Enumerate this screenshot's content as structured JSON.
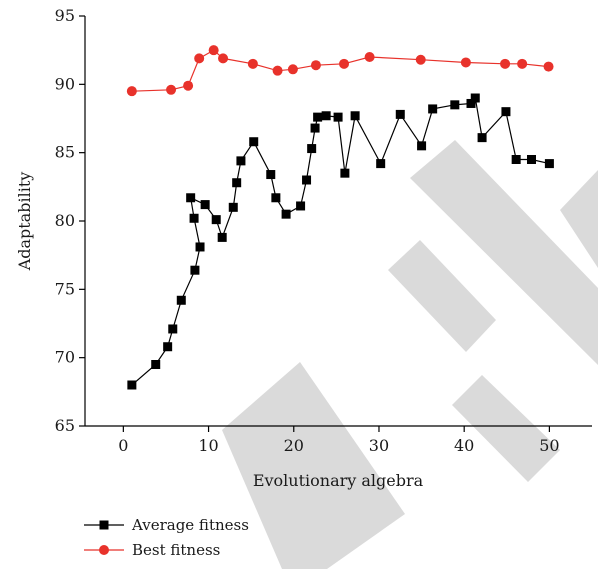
{
  "chart_data": {
    "type": "line",
    "xlabel": "Evolutionary algebra",
    "ylabel": "Adaptability",
    "xlim": [
      -4.5,
      55
    ],
    "ylim": [
      65,
      95
    ],
    "x_ticks": [
      0,
      10,
      20,
      30,
      40,
      50
    ],
    "y_ticks": [
      65,
      70,
      75,
      80,
      85,
      90,
      95
    ],
    "grid": false,
    "legend_position": "bottom-left",
    "series": [
      {
        "name": "Average fitness",
        "color": "#000000",
        "marker": "square",
        "points": [
          [
            1,
            68.0
          ],
          [
            3.8,
            69.5
          ],
          [
            5.2,
            70.8
          ],
          [
            5.8,
            72.1
          ],
          [
            6.8,
            74.2
          ],
          [
            8.4,
            76.4
          ],
          [
            9,
            78.1
          ],
          [
            8.3,
            80.2
          ],
          [
            7.9,
            81.7
          ],
          [
            9.6,
            81.2
          ],
          [
            10.9,
            80.1
          ],
          [
            11.6,
            78.8
          ],
          [
            12.9,
            81.0
          ],
          [
            13.3,
            82.8
          ],
          [
            13.8,
            84.4
          ],
          [
            15.3,
            85.8
          ],
          [
            17.3,
            83.4
          ],
          [
            17.9,
            81.7
          ],
          [
            19.1,
            80.5
          ],
          [
            20.8,
            81.1
          ],
          [
            21.5,
            83.0
          ],
          [
            22.1,
            85.3
          ],
          [
            22.5,
            86.8
          ],
          [
            22.8,
            87.6
          ],
          [
            23.8,
            87.7
          ],
          [
            25.2,
            87.6
          ],
          [
            26,
            83.5
          ],
          [
            27.2,
            87.7
          ],
          [
            30.2,
            84.2
          ],
          [
            32.5,
            87.8
          ],
          [
            35,
            85.5
          ],
          [
            36.3,
            88.2
          ],
          [
            38.9,
            88.5
          ],
          [
            40.8,
            88.6
          ],
          [
            41.3,
            89.0
          ],
          [
            42.1,
            86.1
          ],
          [
            44.9,
            88.0
          ],
          [
            46.1,
            84.5
          ],
          [
            47.9,
            84.5
          ],
          [
            50,
            84.2
          ]
        ]
      },
      {
        "name": "Best fitness",
        "color": "#e8322b",
        "marker": "circle",
        "points": [
          [
            1,
            89.5
          ],
          [
            5.6,
            89.6
          ],
          [
            7.6,
            89.9
          ],
          [
            8.9,
            91.9
          ],
          [
            10.6,
            92.5
          ],
          [
            11.7,
            91.9
          ],
          [
            15.2,
            91.5
          ],
          [
            18.1,
            91.0
          ],
          [
            19.9,
            91.1
          ],
          [
            22.6,
            91.4
          ],
          [
            25.9,
            91.5
          ],
          [
            28.9,
            92.0
          ],
          [
            34.9,
            91.8
          ],
          [
            40.2,
            91.6
          ],
          [
            44.8,
            91.5
          ],
          [
            46.8,
            91.5
          ],
          [
            49.9,
            91.3
          ]
        ]
      }
    ]
  }
}
